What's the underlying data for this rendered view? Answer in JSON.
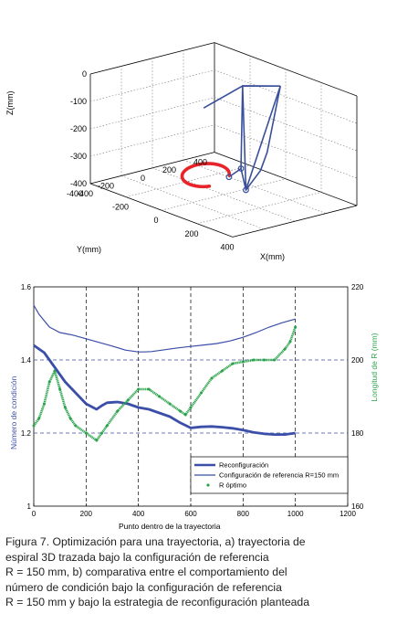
{
  "chart_data": [
    {
      "type": "line3d",
      "xlabel": "X(mm)",
      "ylabel": "Y(mm)",
      "zlabel": "Z(mm)",
      "x_ticks": [
        "-400",
        "-200",
        "0",
        "200",
        "400"
      ],
      "y_ticks": [
        "-400",
        "-200",
        "0",
        "200",
        "400"
      ],
      "z_ticks": [
        "0",
        "-100",
        "-200",
        "-300",
        "-400"
      ],
      "xlim": [
        -400,
        400
      ],
      "ylim": [
        -400,
        400
      ],
      "zlim": [
        -400,
        0
      ],
      "grid": true,
      "colors": {
        "robot_links": "#3a4f9a",
        "spiral_trajectory": "#e8242a"
      }
    },
    {
      "type": "line",
      "xlabel": "Punto dentro de la trayectoria",
      "ylabel_left": "Número de condición",
      "ylabel_right": "Longitud de R (mm)",
      "xlim": [
        0,
        1200
      ],
      "ylim_left": [
        1.0,
        1.6
      ],
      "ylim_right": [
        160,
        220
      ],
      "x_ticks": [
        "0",
        "200",
        "400",
        "600",
        "800",
        "1000",
        "1200"
      ],
      "y_ticks_left": [
        "1",
        "1.2",
        "1.4",
        "1.6"
      ],
      "y_ticks_right": [
        "160",
        "180",
        "200",
        "220"
      ],
      "grid": "dashed",
      "legend_position": "bottom-right",
      "series": [
        {
          "name": "Reconfiguración",
          "axis": "left",
          "color": "#3b4ea8",
          "x": [
            0,
            40,
            80,
            120,
            160,
            200,
            240,
            260,
            280,
            320,
            360,
            400,
            440,
            480,
            520,
            560,
            600,
            640,
            680,
            720,
            760,
            800,
            840,
            880,
            920,
            960,
            1000
          ],
          "y": [
            1.44,
            1.42,
            1.38,
            1.34,
            1.31,
            1.28,
            1.265,
            1.275,
            1.283,
            1.285,
            1.28,
            1.27,
            1.265,
            1.255,
            1.245,
            1.228,
            1.214,
            1.217,
            1.218,
            1.216,
            1.213,
            1.208,
            1.202,
            1.198,
            1.196,
            1.196,
            1.2
          ]
        },
        {
          "name": "Configuración de referencia R=150 mm",
          "axis": "left",
          "color": "#3b4ea8",
          "x": [
            0,
            20,
            60,
            100,
            150,
            200,
            250,
            300,
            350,
            400,
            420,
            450,
            500,
            550,
            600,
            650,
            700,
            750,
            800,
            850,
            900,
            950,
            1000
          ],
          "y": [
            1.55,
            1.525,
            1.49,
            1.475,
            1.468,
            1.458,
            1.448,
            1.438,
            1.427,
            1.422,
            1.422,
            1.423,
            1.428,
            1.433,
            1.437,
            1.441,
            1.445,
            1.452,
            1.462,
            1.475,
            1.49,
            1.502,
            1.512
          ]
        },
        {
          "name": "R óptimo",
          "axis": "right",
          "color": "#2aa34a",
          "marker": "dot",
          "x": [
            0,
            20,
            40,
            60,
            80,
            100,
            120,
            140,
            160,
            200,
            240,
            260,
            280,
            320,
            360,
            400,
            440,
            480,
            520,
            560,
            580,
            600,
            640,
            680,
            720,
            760,
            800,
            840,
            880,
            920,
            960,
            980,
            1000
          ],
          "y": [
            182,
            184,
            188,
            194,
            197,
            192,
            187,
            184,
            182,
            180,
            178,
            180,
            182,
            186,
            189,
            192,
            192,
            190,
            188,
            186,
            185,
            187,
            191,
            195,
            197,
            199,
            199.5,
            200,
            200,
            200,
            203,
            205,
            209
          ]
        }
      ]
    }
  ],
  "legend": {
    "series_1_label": "Reconfiguración",
    "series_2_label": "Configuración de referencia R=150 mm",
    "series_3_label": "R óptimo"
  },
  "caption": {
    "line1": "Figura 7. Optimización para una trayectoria, a) trayectoria de",
    "line2": "espiral 3D trazada bajo la configuración de referencia",
    "line3": "R = 150 mm, b) comparativa entre el comportamiento del",
    "line4": "número de condición bajo la configuración de referencia",
    "line5": "R = 150 mm y bajo la estrategia de reconfiguración planteada"
  }
}
